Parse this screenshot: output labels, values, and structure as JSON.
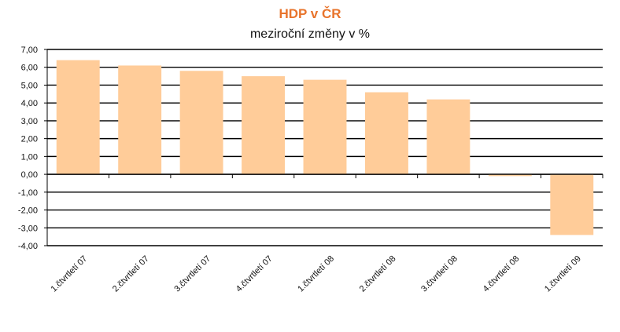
{
  "chart_data": {
    "type": "bar",
    "title": "HDP v ČR",
    "subtitle": "meziroční změny v %",
    "categories": [
      "1.čtvrtletí 07",
      "2.čtvrtletí 07",
      "3.čtvrtletí 07",
      "4.čtvrtletí 07",
      "1.čtvrtletí 08",
      "2.čtvrtletí 08",
      "3.čtvrtletí 08",
      "4.čtvrtletí 08",
      "1.čtvrtletí 09"
    ],
    "values": [
      6.4,
      6.1,
      5.8,
      5.5,
      5.3,
      4.6,
      4.2,
      -0.1,
      -3.4
    ],
    "ylim": [
      -4,
      7
    ],
    "yticks": [
      7,
      6,
      5,
      4,
      3,
      2,
      1,
      0,
      -1,
      -2,
      -3,
      -4
    ],
    "ytick_labels": [
      "7,00",
      "6,00",
      "5,00",
      "4,00",
      "3,00",
      "2,00",
      "1,00",
      "0,00",
      "-1,00",
      "-2,00",
      "-3,00",
      "-4,00"
    ],
    "grid": true,
    "bar_color": "#ffcc99",
    "title_color": "#e8742c"
  }
}
